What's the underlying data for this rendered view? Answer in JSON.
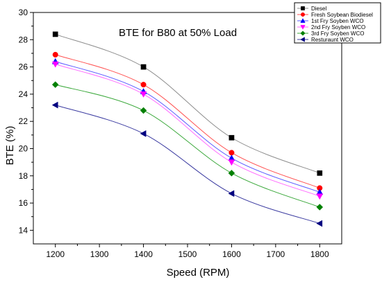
{
  "chart_data": {
    "type": "line",
    "title": "BTE for B80 at 50% Load",
    "xlabel": "Speed (RPM)",
    "ylabel": "BTE (%)",
    "xlim": [
      1150,
      1850
    ],
    "ylim": [
      13,
      30
    ],
    "xticks": [
      1200,
      1300,
      1400,
      1500,
      1600,
      1700,
      1800
    ],
    "yticks": [
      14,
      16,
      18,
      20,
      22,
      24,
      26,
      28,
      30
    ],
    "grid": false,
    "legend_position": "top-right",
    "x": [
      1200,
      1400,
      1600,
      1800
    ],
    "series": [
      {
        "name": "Diesel",
        "values": [
          28.4,
          26.0,
          20.8,
          18.2
        ],
        "color": "#000000",
        "line_color": "#8c8c8c",
        "marker": "square"
      },
      {
        "name": "Fresh Soybean Biodiesel",
        "values": [
          26.9,
          24.7,
          19.7,
          17.1
        ],
        "color": "#ff0000",
        "line_color": "#ff5050",
        "marker": "circle"
      },
      {
        "name": "1st Fry Soyben WCO",
        "values": [
          26.4,
          24.2,
          19.3,
          16.8
        ],
        "color": "#0000ff",
        "line_color": "#5a5aff",
        "marker": "triangle-up"
      },
      {
        "name": "2nd Fry Soyben WCO",
        "values": [
          26.2,
          24.0,
          19.0,
          16.5
        ],
        "color": "#ff00ff",
        "line_color": "#ff6aff",
        "marker": "triangle-down"
      },
      {
        "name": "3rd Fry Soyben WCO",
        "values": [
          24.7,
          22.8,
          18.2,
          15.7
        ],
        "color": "#008000",
        "line_color": "#3aa83a",
        "marker": "diamond"
      },
      {
        "name": "Resturaunt WCO",
        "values": [
          23.2,
          21.1,
          16.7,
          14.5
        ],
        "color": "#000080",
        "line_color": "#3a3aa0",
        "marker": "triangle-left"
      }
    ]
  }
}
